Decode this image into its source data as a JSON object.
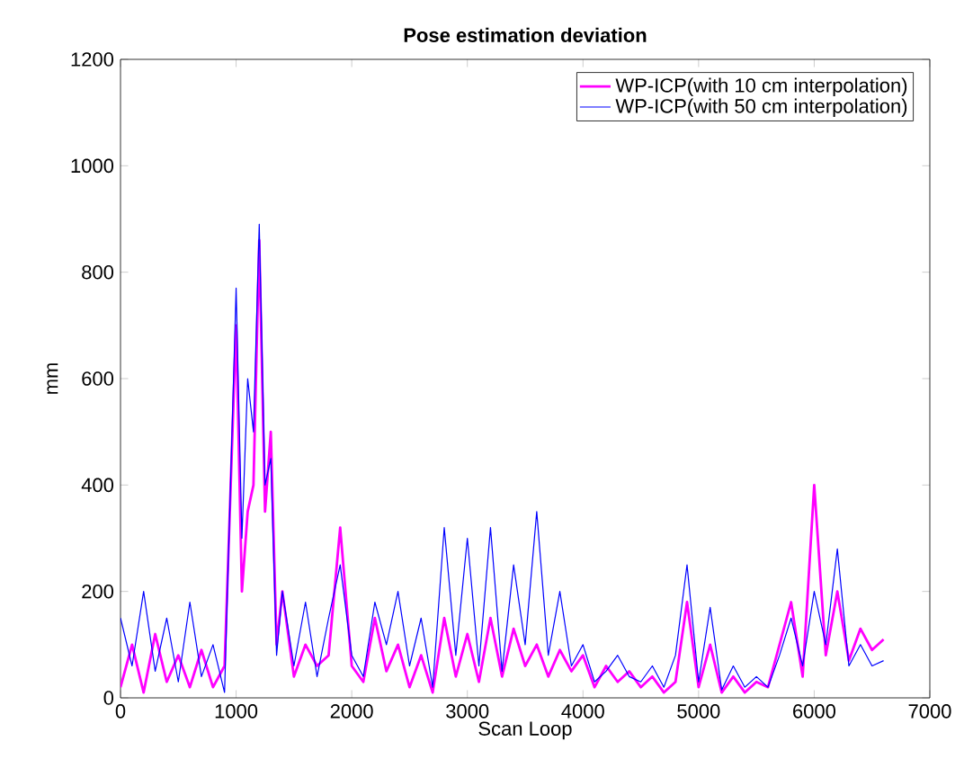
{
  "chart_data": {
    "type": "line",
    "title": "Pose estimation deviation",
    "xlabel": "Scan Loop",
    "ylabel": "mm",
    "xlim": [
      0,
      7000
    ],
    "ylim": [
      0,
      1200
    ],
    "xticks": [
      0,
      1000,
      2000,
      3000,
      4000,
      5000,
      6000,
      7000
    ],
    "yticks": [
      0,
      200,
      400,
      600,
      800,
      1000,
      1200
    ],
    "grid": false,
    "legend": "top right",
    "marker": "none",
    "line_style": "solid",
    "series": [
      {
        "name": "WP-ICP(with 10 cm interpolation)",
        "color": "#ff00ff",
        "x": [
          0,
          100,
          200,
          300,
          400,
          500,
          600,
          700,
          800,
          900,
          1000,
          1050,
          1100,
          1150,
          1200,
          1250,
          1300,
          1350,
          1400,
          1500,
          1600,
          1700,
          1800,
          1900,
          2000,
          2100,
          2200,
          2300,
          2400,
          2500,
          2600,
          2700,
          2800,
          2900,
          3000,
          3100,
          3200,
          3300,
          3400,
          3500,
          3600,
          3700,
          3800,
          3900,
          4000,
          4100,
          4200,
          4300,
          4400,
          4500,
          4600,
          4700,
          4800,
          4900,
          5000,
          5100,
          5200,
          5300,
          5400,
          5500,
          5600,
          5700,
          5800,
          5900,
          6000,
          6100,
          6200,
          6300,
          6400,
          6500,
          6600
        ],
        "values": [
          20,
          100,
          10,
          120,
          30,
          80,
          20,
          90,
          20,
          60,
          700,
          200,
          350,
          400,
          860,
          350,
          500,
          100,
          200,
          40,
          100,
          60,
          80,
          320,
          60,
          30,
          150,
          50,
          100,
          20,
          80,
          10,
          150,
          40,
          120,
          30,
          150,
          40,
          130,
          60,
          100,
          40,
          90,
          50,
          80,
          20,
          60,
          30,
          50,
          20,
          40,
          10,
          30,
          180,
          20,
          100,
          10,
          40,
          10,
          30,
          20,
          100,
          180,
          40,
          400,
          80,
          200,
          70,
          130,
          90,
          110
        ]
      },
      {
        "name": "WP-ICP(with 50 cm interpolation)",
        "color": "#0000ff",
        "x": [
          0,
          100,
          200,
          300,
          400,
          500,
          600,
          700,
          800,
          900,
          1000,
          1050,
          1100,
          1150,
          1200,
          1250,
          1300,
          1350,
          1400,
          1500,
          1600,
          1700,
          1800,
          1900,
          2000,
          2100,
          2200,
          2300,
          2400,
          2500,
          2600,
          2700,
          2800,
          2900,
          3000,
          3100,
          3200,
          3300,
          3400,
          3500,
          3600,
          3700,
          3800,
          3900,
          4000,
          4100,
          4200,
          4300,
          4400,
          4500,
          4600,
          4700,
          4800,
          4900,
          5000,
          5100,
          5200,
          5300,
          5400,
          5500,
          5600,
          5700,
          5800,
          5900,
          6000,
          6100,
          6200,
          6300,
          6400,
          6500,
          6600
        ],
        "values": [
          150,
          60,
          200,
          50,
          150,
          30,
          180,
          40,
          100,
          10,
          770,
          300,
          600,
          500,
          890,
          400,
          450,
          80,
          200,
          60,
          180,
          40,
          150,
          250,
          80,
          40,
          180,
          100,
          200,
          60,
          150,
          20,
          320,
          80,
          300,
          60,
          320,
          50,
          250,
          100,
          350,
          80,
          200,
          60,
          100,
          30,
          50,
          80,
          40,
          30,
          60,
          20,
          80,
          250,
          30,
          170,
          15,
          60,
          20,
          40,
          20,
          80,
          150,
          60,
          200,
          100,
          280,
          60,
          100,
          60,
          70
        ]
      }
    ]
  }
}
